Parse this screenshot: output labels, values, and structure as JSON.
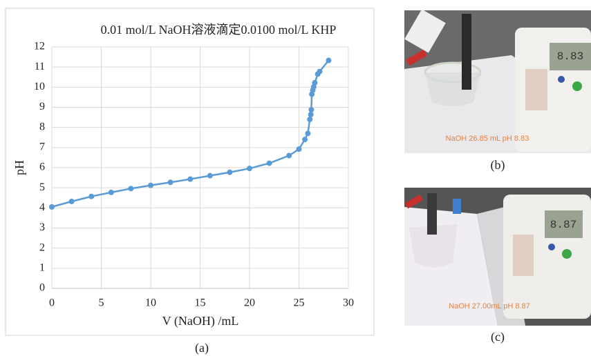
{
  "chart_data": {
    "type": "line",
    "title": "0.01 mol/L NaOH溶液滴定0.0100 mol/L KHP",
    "x_label": "V (NaOH) /mL",
    "y_label": "pH",
    "caption": "(a)",
    "x": [
      0,
      2,
      4,
      6,
      8,
      10,
      12,
      14,
      16,
      18,
      20,
      22,
      24,
      25,
      25.6,
      25.9,
      26.1,
      26.2,
      26.25,
      26.3,
      26.4,
      26.5,
      26.6,
      26.9,
      27.1,
      28
    ],
    "series": [
      {
        "name": "pH",
        "color": "#5b9bd5",
        "values": [
          4.05,
          4.32,
          4.57,
          4.77,
          4.96,
          5.12,
          5.27,
          5.43,
          5.6,
          5.77,
          5.96,
          6.22,
          6.6,
          6.92,
          7.4,
          7.7,
          8.4,
          8.64,
          8.88,
          9.65,
          9.85,
          10.02,
          10.22,
          10.65,
          10.78,
          11.33
        ]
      }
    ],
    "xlim": [
      0,
      30
    ],
    "ylim": [
      0,
      12
    ],
    "xticks": [
      0,
      5,
      10,
      15,
      20,
      25,
      30
    ],
    "yticks": [
      0,
      1,
      2,
      3,
      4,
      5,
      6,
      7,
      8,
      9,
      10,
      11,
      12
    ],
    "grid": true
  },
  "photos": [
    {
      "display": "8.83",
      "overlay": "NaOH  26.85 mL  pH 8.83",
      "caption": "(b)"
    },
    {
      "display": "8.87",
      "overlay": "NaOH  27.00mL  pH  8.87",
      "caption": "(c)"
    }
  ]
}
